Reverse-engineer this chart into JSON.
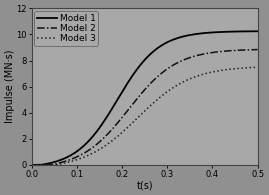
{
  "background_color": "#909090",
  "plot_bg_color": "#a8a8a8",
  "xlim": [
    0.0,
    0.5
  ],
  "ylim": [
    0,
    12
  ],
  "xticks": [
    0.0,
    0.1,
    0.2,
    0.3,
    0.4,
    0.5
  ],
  "yticks": [
    0,
    2,
    4,
    6,
    8,
    10,
    12
  ],
  "xlabel": "t(s)",
  "ylabel": "Impulse (MN·s)",
  "legend_labels": [
    "Model 1",
    "Model 2",
    "Model 3"
  ],
  "model1_color": "#000000",
  "model2_color": "#111111",
  "model3_color": "#222222",
  "axis_fontsize": 7,
  "tick_fontsize": 6,
  "legend_fontsize": 6.5,
  "model1_plateau": 10.5,
  "model1_t0": 0.19,
  "model1_k": 22,
  "model1_tstart": 0.02,
  "model2_plateau": 9.2,
  "model2_t0": 0.215,
  "model2_k": 19,
  "model2_tstart": 0.04,
  "model3_plateau": 7.9,
  "model3_t0": 0.235,
  "model3_k": 17,
  "model3_tstart": 0.05
}
